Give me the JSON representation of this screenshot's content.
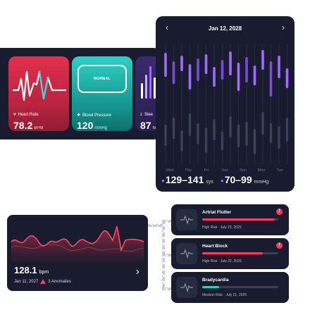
{
  "colors": {
    "card": "#181c2e",
    "heart": "#e2304d",
    "teal": "#2fd0c5",
    "purple": "#a26bff",
    "alert": "#ff3b55"
  },
  "vitals": {
    "heart_rate": {
      "label": "Heart Rate",
      "value": "78.2",
      "unit": "BPM",
      "icon": "heart-icon"
    },
    "blood_pressure": {
      "label": "Blood Pressure",
      "value": "120",
      "unit": "mmHg",
      "status": "NORMAL",
      "icon": "plus-icon"
    },
    "sleep": {
      "label": "Slee",
      "value": "87",
      "unit": "hc",
      "icon": "zzz-icon"
    }
  },
  "calendar": {
    "date": "Jan 12, 2028",
    "days": [
      "Wed",
      "Thu",
      "Fri",
      "Sat",
      "Sun",
      "Mon",
      "Tue"
    ],
    "systolic": {
      "range": "129–141",
      "unit": "sys"
    },
    "diastolic": {
      "range": "70–99",
      "unit": "mmHg"
    }
  },
  "ecg": {
    "value": "128.1",
    "unit": "bpm",
    "date": "Jan 11, 2027",
    "anomalies_label": "3 Anomalies"
  },
  "anomalies": [
    {
      "name": "Artrial Flutter",
      "severity": "High Risk",
      "date": "July 23, 2025",
      "level": 0.95,
      "color": "#ff3b55",
      "alert": true
    },
    {
      "name": "Heart Block",
      "severity": "High Risk",
      "date": "July 22, 2025",
      "level": 0.8,
      "color": "#ff3b55",
      "alert": true
    },
    {
      "name": "Bradycardia",
      "severity": "Medium Risk",
      "date": "July 21, 2025",
      "level": 0.22,
      "color": "#2fd0c5",
      "alert": false
    }
  ]
}
